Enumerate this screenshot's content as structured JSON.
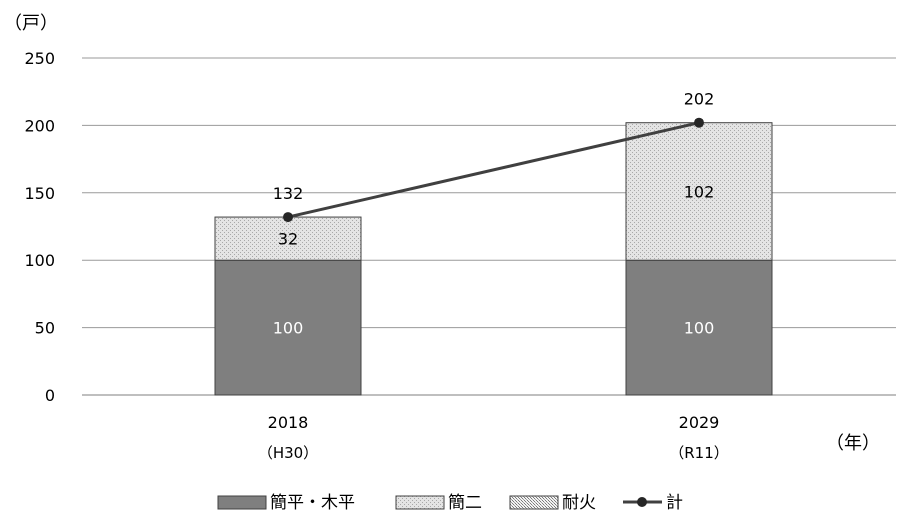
{
  "chart_data": {
    "type": "bar",
    "stacked": true,
    "y_unit_label": "（戸）",
    "x_unit_label": "（年）",
    "ylim": [
      0,
      250
    ],
    "yticks": [
      "0",
      "50",
      "100",
      "150",
      "200",
      "250"
    ],
    "grid": true,
    "legend_position": "bottom",
    "categories": [
      {
        "year": "2018",
        "era": "（H30）"
      },
      {
        "year": "2029",
        "era": "（R11）"
      }
    ],
    "series": [
      {
        "name": "簡平・木平",
        "values": [
          100,
          100
        ],
        "color": "#7f7f7f",
        "pattern": "solid",
        "label_color": "#ffffff"
      },
      {
        "name": "簡二",
        "values": [
          32,
          102
        ],
        "color": "#d9d9d9",
        "pattern": "light-dots",
        "label_color": "#000000"
      },
      {
        "name": "耐火",
        "values": [
          0,
          0
        ],
        "color": "#c8c8c8",
        "pattern": "dense-dots",
        "label_color": "#000000"
      }
    ],
    "total": {
      "name": "計",
      "values": [
        132,
        202
      ],
      "color": "#404040",
      "type": "line"
    }
  }
}
